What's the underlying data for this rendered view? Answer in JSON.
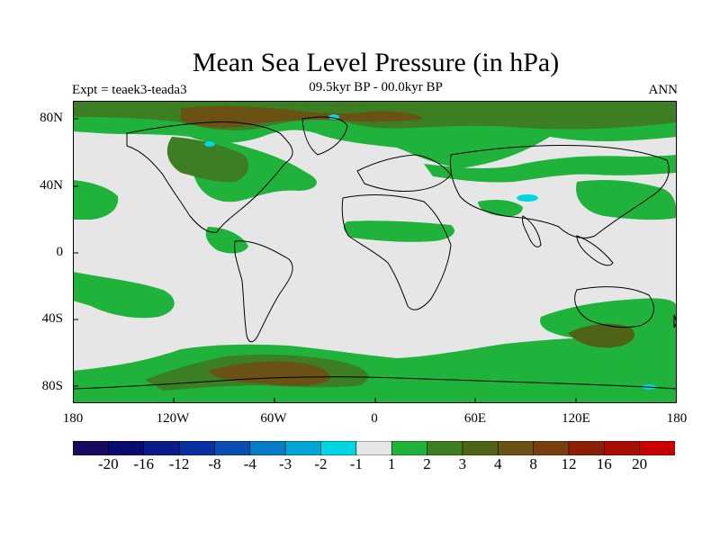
{
  "title": "Mean Sea Level Pressure (in hPa)",
  "subtitle": "09.5kyr BP - 00.0kyr BP",
  "left_label": "Expt = teaek3-teada3",
  "right_label": "ANN",
  "lat_labels": [
    "80N",
    "40N",
    "0",
    "40S",
    "80S"
  ],
  "lon_labels": [
    "180",
    "120W",
    "60W",
    "0",
    "60E",
    "120E",
    "180"
  ],
  "colors": {
    "land_outline": "#000000",
    "neutral": "#e6e6e6",
    "green": "#1fb33c",
    "dark_green": "#3b7e24",
    "olive": "#4f6316",
    "brown": "#6a5214",
    "cyan": "#00d6e0"
  },
  "colorbar": {
    "colors": [
      "#1a0a5e",
      "#0a0b6e",
      "#0a1b8a",
      "#0a2f9e",
      "#0b4eb0",
      "#0a7cc4",
      "#00a6d4",
      "#00d6e0",
      "#e6e6e6",
      "#1fb33c",
      "#3b7e24",
      "#4f6316",
      "#6a5214",
      "#7a3e0e",
      "#8c2006",
      "#a60d03",
      "#c80000"
    ],
    "labels": [
      "-20",
      "-16",
      "-12",
      "-8",
      "-4",
      "-3",
      "-2",
      "-1",
      "1",
      "2",
      "3",
      "4",
      "8",
      "12",
      "16",
      "20"
    ]
  }
}
